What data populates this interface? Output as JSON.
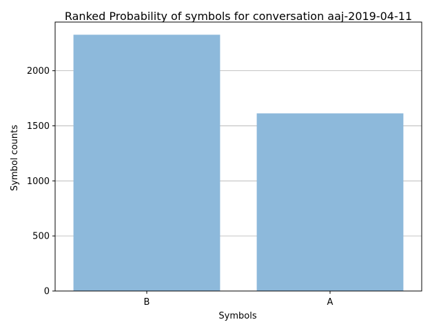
{
  "chart_data": {
    "type": "bar",
    "title": "Ranked Probability of symbols for conversation aaj-2019-04-11",
    "xlabel": "Symbols",
    "ylabel": "Symbol counts",
    "categories": [
      "B",
      "A"
    ],
    "values": [
      2327,
      1613
    ],
    "ylim": [
      0,
      2442
    ],
    "yticks": [
      0,
      500,
      1000,
      1500,
      2000
    ],
    "grid": "horizontal",
    "bar_color": "#8db9db",
    "bar_opacity": 1
  }
}
